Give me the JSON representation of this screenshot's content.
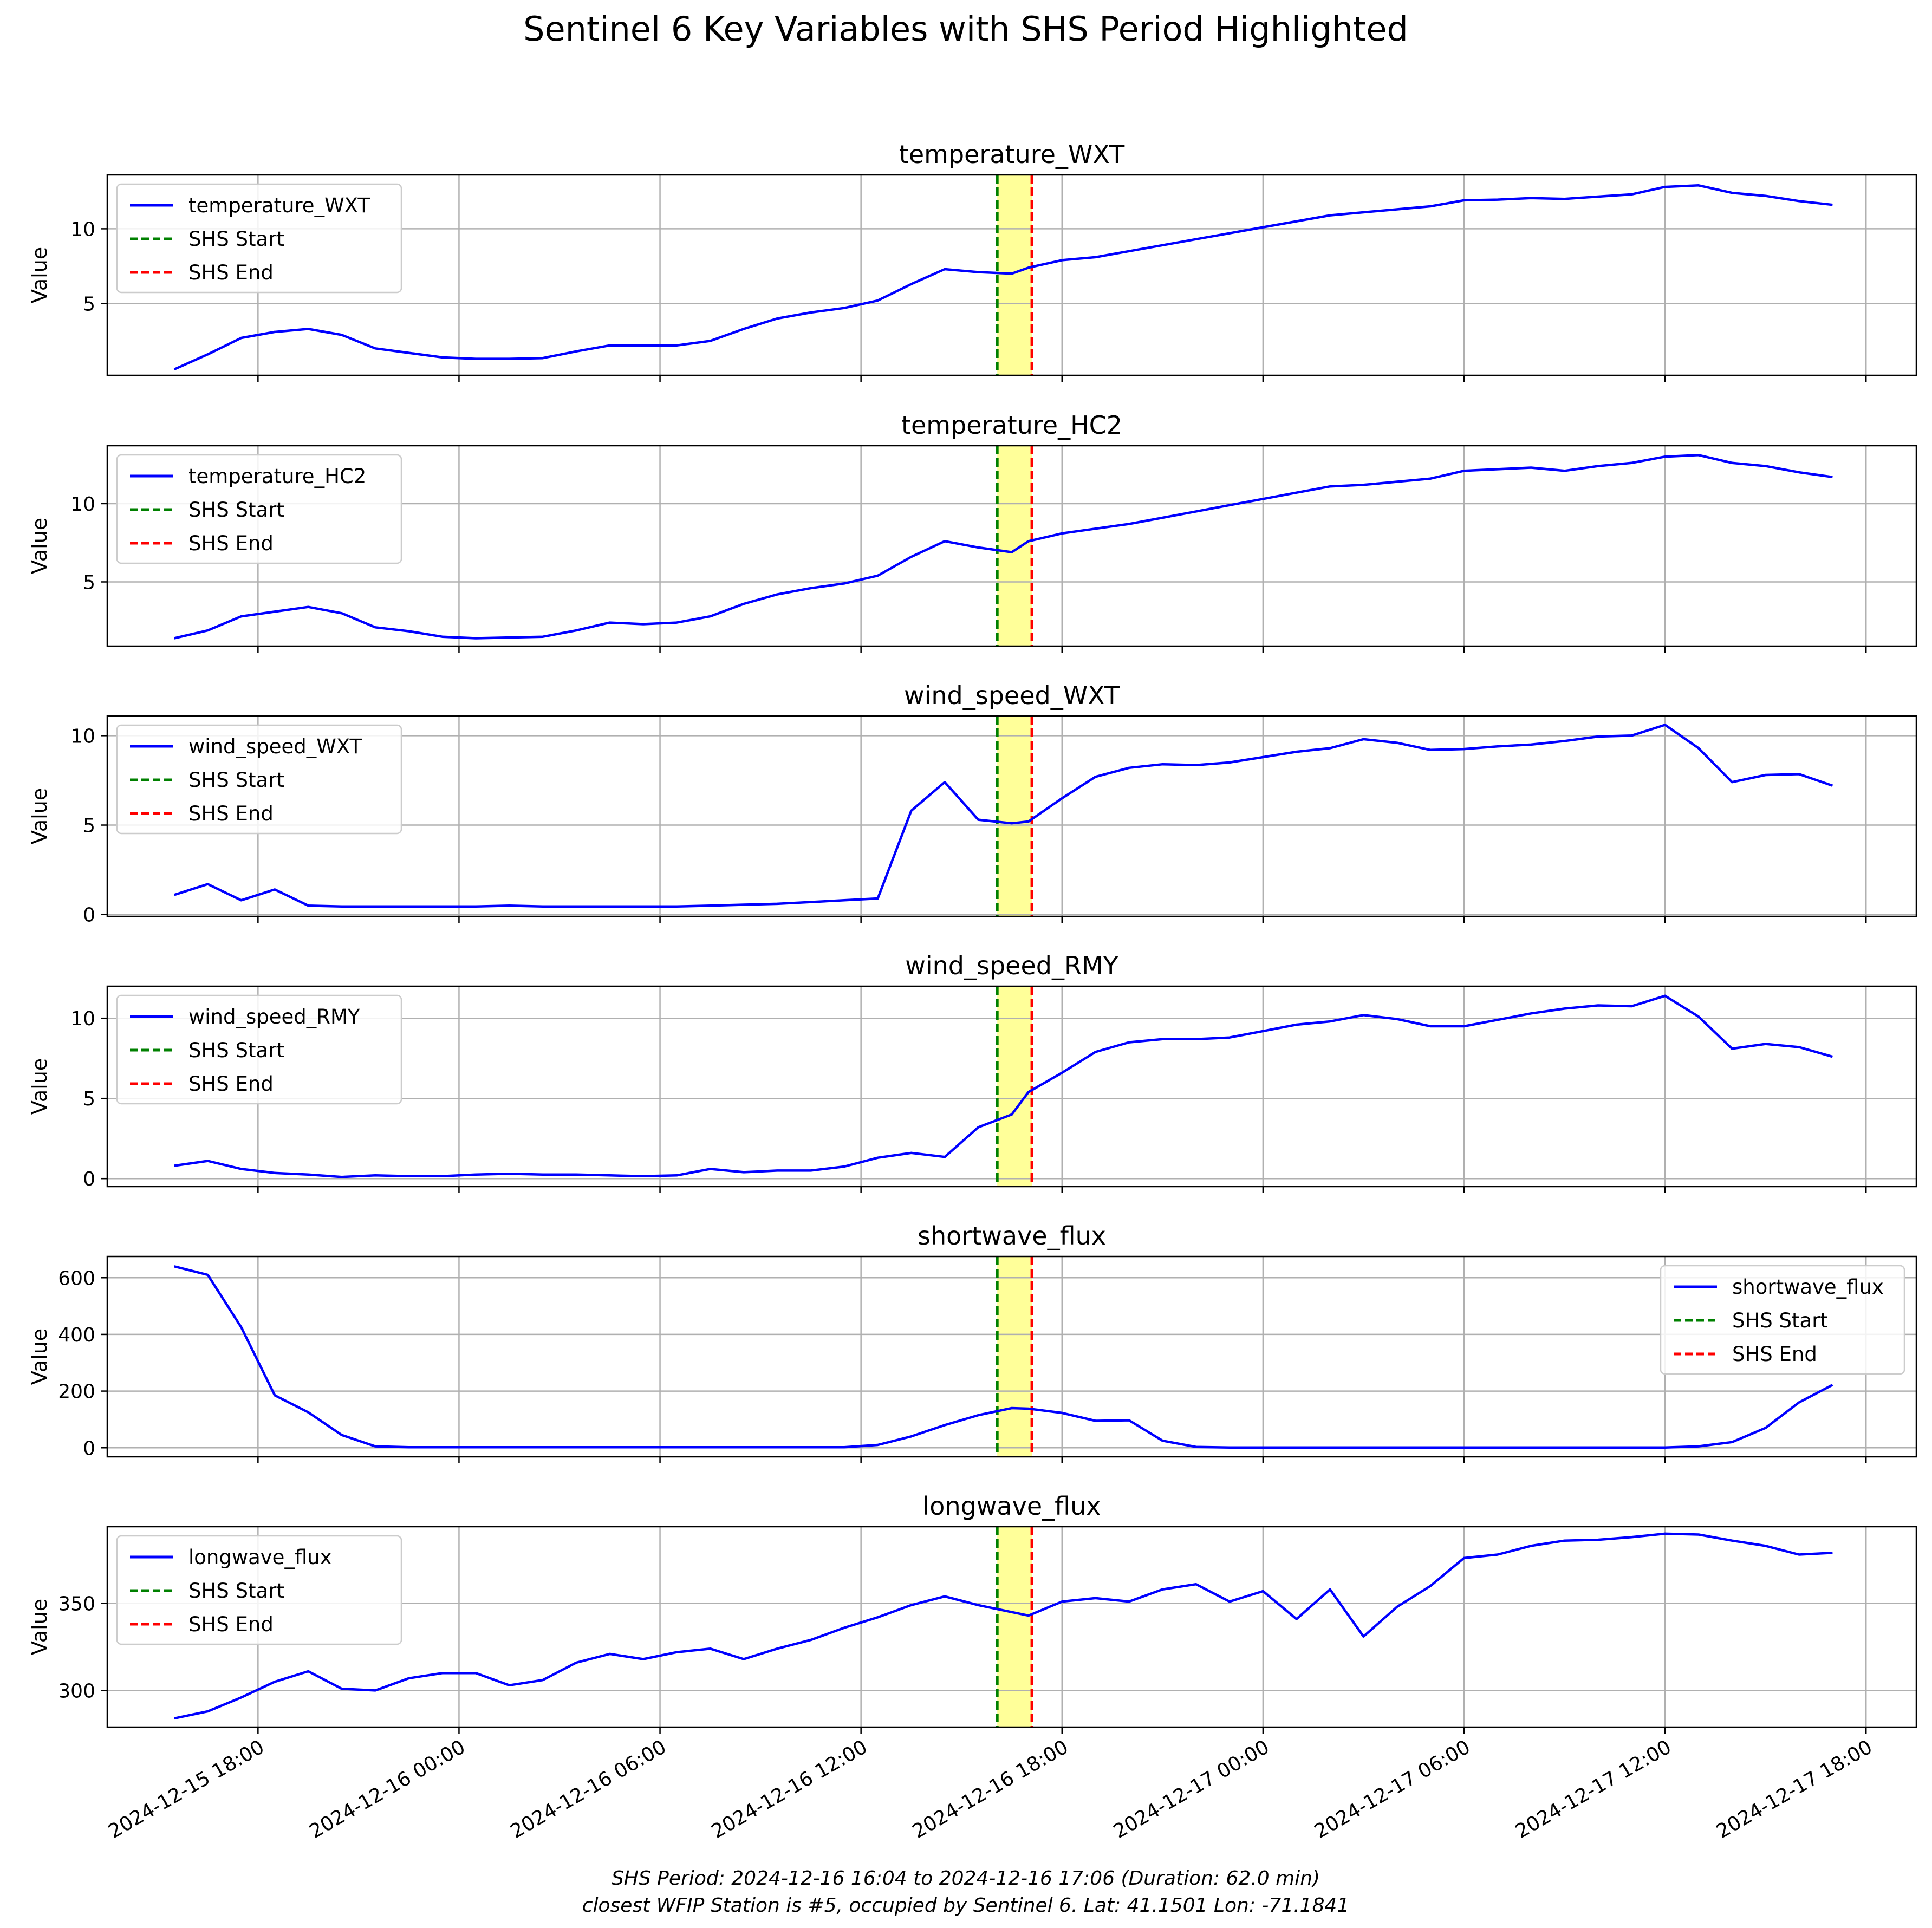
{
  "figure": {
    "title": "Sentinel 6 Key Variables with SHS Period Highlighted",
    "footnote_line1": "SHS Period: 2024-12-16 16:04 to 2024-12-16 17:06 (Duration: 62.0 min)",
    "footnote_line2": "closest WFIP Station is #5, occupied by Sentinel 6. Lat: 41.1501 Lon: -71.1841"
  },
  "colors": {
    "series": "#0000ff",
    "shs_start": "#008000",
    "shs_end": "#ff0000",
    "shs_fill": "#ffff99",
    "grid": "#b0b0b0"
  },
  "chart_data": {
    "type": "line",
    "x_axis": {
      "type": "datetime",
      "range": [
        "2024-12-15 13:30",
        "2024-12-17 19:30"
      ],
      "ticks": [
        "2024-12-15 18:00",
        "2024-12-16 00:00",
        "2024-12-16 06:00",
        "2024-12-16 12:00",
        "2024-12-16 18:00",
        "2024-12-17 00:00",
        "2024-12-17 06:00",
        "2024-12-17 12:00",
        "2024-12-17 18:00"
      ],
      "tick_labels": [
        "2024-12-15 18:00",
        "2024-12-16 00:00",
        "2024-12-16 06:00",
        "2024-12-16 12:00",
        "2024-12-16 18:00",
        "2024-12-17 00:00",
        "2024-12-17 06:00",
        "2024-12-17 12:00",
        "2024-12-17 18:00"
      ]
    },
    "x": [
      "2024-12-15 15:30",
      "2024-12-15 16:30",
      "2024-12-15 17:30",
      "2024-12-15 18:30",
      "2024-12-15 19:30",
      "2024-12-15 20:30",
      "2024-12-15 21:30",
      "2024-12-15 22:30",
      "2024-12-15 23:30",
      "2024-12-16 00:30",
      "2024-12-16 01:30",
      "2024-12-16 02:30",
      "2024-12-16 03:30",
      "2024-12-16 04:30",
      "2024-12-16 05:30",
      "2024-12-16 06:30",
      "2024-12-16 07:30",
      "2024-12-16 08:30",
      "2024-12-16 09:30",
      "2024-12-16 10:30",
      "2024-12-16 11:30",
      "2024-12-16 12:30",
      "2024-12-16 13:30",
      "2024-12-16 14:30",
      "2024-12-16 15:30",
      "2024-12-16 16:30",
      "2024-12-16 17:00",
      "2024-12-16 18:00",
      "2024-12-16 19:00",
      "2024-12-16 20:00",
      "2024-12-16 21:00",
      "2024-12-16 22:00",
      "2024-12-16 23:00",
      "2024-12-17 00:00",
      "2024-12-17 01:00",
      "2024-12-17 02:00",
      "2024-12-17 03:00",
      "2024-12-17 04:00",
      "2024-12-17 05:00",
      "2024-12-17 06:00",
      "2024-12-17 07:00",
      "2024-12-17 08:00",
      "2024-12-17 09:00",
      "2024-12-17 10:00",
      "2024-12-17 11:00",
      "2024-12-17 12:00",
      "2024-12-17 13:00",
      "2024-12-17 14:00",
      "2024-12-17 15:00",
      "2024-12-17 16:00",
      "2024-12-17 17:00"
    ],
    "shs": {
      "start": "2024-12-16 16:04",
      "end": "2024-12-16 17:06",
      "start_label": "SHS Start",
      "end_label": "SHS End"
    },
    "panels": [
      {
        "title": "temperature_WXT",
        "ylabel": "Value",
        "series_name": "temperature_WXT",
        "ylim": [
          0.2,
          13.6
        ],
        "yticks": [
          5,
          10
        ],
        "legend": "upper-left",
        "values": [
          0.6,
          1.6,
          2.7,
          3.1,
          3.3,
          2.9,
          2.0,
          1.7,
          1.4,
          1.3,
          1.3,
          1.35,
          1.8,
          2.2,
          2.2,
          2.2,
          2.5,
          3.3,
          4.0,
          4.4,
          4.7,
          5.2,
          6.3,
          7.3,
          7.1,
          7.0,
          7.4,
          7.9,
          8.1,
          8.5,
          8.9,
          9.3,
          9.7,
          10.1,
          10.5,
          10.9,
          11.1,
          11.3,
          11.5,
          11.9,
          11.95,
          12.05,
          12.0,
          12.15,
          12.3,
          12.8,
          12.9,
          12.4,
          12.2,
          11.85,
          11.6
        ]
      },
      {
        "title": "temperature_HC2",
        "ylabel": "Value",
        "series_name": "temperature_HC2",
        "ylim": [
          0.9,
          13.7
        ],
        "yticks": [
          5,
          10
        ],
        "legend": "upper-left",
        "values": [
          1.4,
          1.9,
          2.8,
          3.1,
          3.4,
          3.0,
          2.1,
          1.85,
          1.5,
          1.4,
          1.45,
          1.5,
          1.9,
          2.4,
          2.3,
          2.4,
          2.8,
          3.6,
          4.2,
          4.6,
          4.9,
          5.4,
          6.6,
          7.6,
          7.2,
          6.9,
          7.6,
          8.1,
          8.4,
          8.7,
          9.1,
          9.5,
          9.9,
          10.3,
          10.7,
          11.1,
          11.2,
          11.4,
          11.6,
          12.1,
          12.2,
          12.3,
          12.1,
          12.4,
          12.6,
          13.0,
          13.1,
          12.6,
          12.4,
          12.0,
          11.7
        ]
      },
      {
        "title": "wind_speed_WXT",
        "ylabel": "Value",
        "series_name": "wind_speed_WXT",
        "ylim": [
          -0.1,
          11.1
        ],
        "yticks": [
          0,
          5,
          10
        ],
        "legend": "upper-left",
        "values": [
          1.1,
          1.7,
          0.8,
          1.4,
          0.5,
          0.45,
          0.45,
          0.45,
          0.45,
          0.45,
          0.5,
          0.45,
          0.45,
          0.45,
          0.45,
          0.45,
          0.5,
          0.55,
          0.6,
          0.7,
          0.8,
          0.9,
          5.8,
          7.4,
          5.3,
          5.1,
          5.2,
          6.5,
          7.7,
          8.2,
          8.4,
          8.35,
          8.5,
          8.8,
          9.1,
          9.3,
          9.8,
          9.6,
          9.2,
          9.25,
          9.4,
          9.5,
          9.7,
          9.95,
          10.0,
          10.6,
          9.3,
          7.4,
          7.8,
          7.85,
          7.2
        ]
      },
      {
        "title": "wind_speed_RMY",
        "ylabel": "Value",
        "series_name": "wind_speed_RMY",
        "ylim": [
          -0.5,
          12.0
        ],
        "yticks": [
          0,
          5,
          10
        ],
        "legend": "upper-left",
        "values": [
          0.8,
          1.1,
          0.6,
          0.35,
          0.25,
          0.1,
          0.2,
          0.15,
          0.15,
          0.25,
          0.3,
          0.25,
          0.25,
          0.2,
          0.15,
          0.2,
          0.6,
          0.4,
          0.5,
          0.5,
          0.75,
          1.3,
          1.6,
          1.35,
          3.2,
          4.0,
          5.4,
          6.6,
          7.9,
          8.5,
          8.7,
          8.7,
          8.8,
          9.2,
          9.6,
          9.8,
          10.2,
          9.95,
          9.5,
          9.5,
          9.9,
          10.3,
          10.6,
          10.8,
          10.75,
          11.4,
          10.1,
          8.1,
          8.4,
          8.2,
          7.6
        ]
      },
      {
        "title": "shortwave_flux",
        "ylabel": "Value",
        "series_name": "shortwave_flux",
        "ylim": [
          -32,
          675
        ],
        "yticks": [
          0,
          200,
          400,
          600
        ],
        "legend": "upper-right",
        "values": [
          640,
          610,
          425,
          185,
          125,
          45,
          5,
          2,
          2,
          2,
          2,
          2,
          2,
          2,
          2,
          2,
          2,
          2,
          2,
          2,
          2,
          10,
          40,
          80,
          115,
          140,
          138,
          123,
          95,
          97,
          25,
          3,
          1,
          1,
          1,
          1,
          1,
          1,
          1,
          1,
          1,
          1,
          1,
          1,
          1,
          1,
          5,
          20,
          70,
          160,
          222
        ]
      },
      {
        "title": "longwave_flux",
        "ylabel": "Value",
        "series_name": "longwave_flux",
        "ylim": [
          279,
          394
        ],
        "yticks": [
          300,
          350
        ],
        "legend": "upper-left",
        "values": [
          284,
          288,
          296,
          305,
          311,
          301,
          300,
          307,
          310,
          310,
          303,
          306,
          316,
          321,
          318,
          322,
          324,
          318,
          324,
          329,
          336,
          342,
          349,
          354,
          349,
          345,
          343,
          351,
          353,
          351,
          358,
          361,
          351,
          357,
          341,
          358,
          331,
          348,
          360,
          376,
          378,
          383,
          386,
          386.5,
          388,
          390,
          389.5,
          386,
          383,
          378,
          379
        ]
      }
    ]
  }
}
